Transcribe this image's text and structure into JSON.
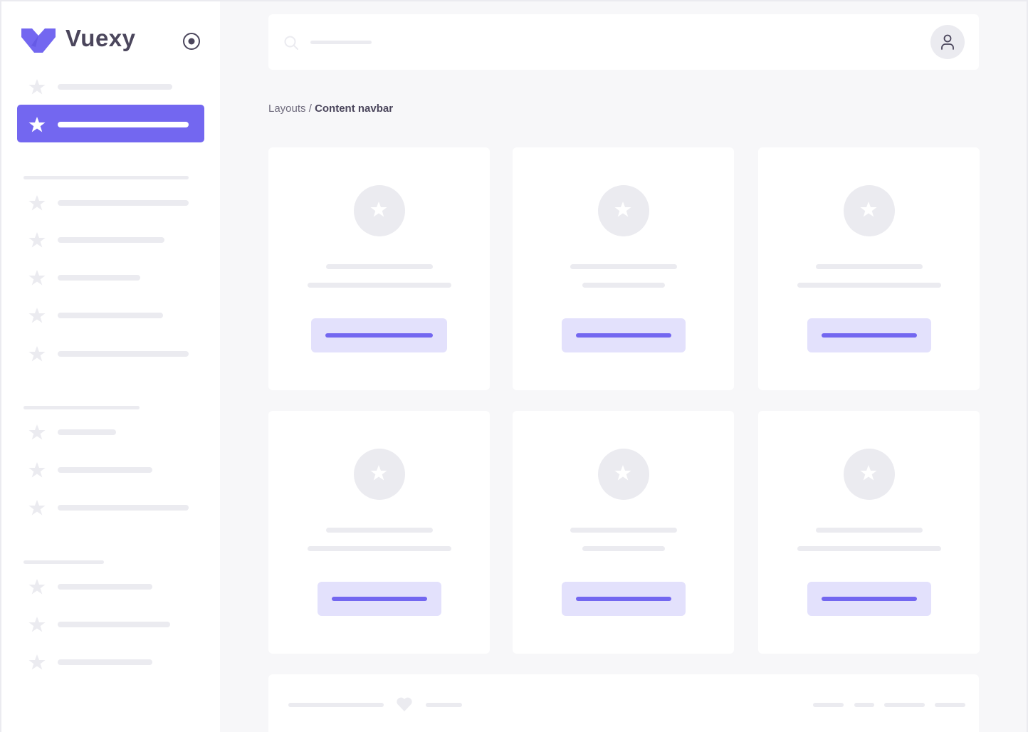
{
  "brand": {
    "name": "Vuexy",
    "logo_icon": "vuexy-logo-icon",
    "toggle_icon": "radio-circle-icon"
  },
  "colors": {
    "primary": "#7367f0",
    "primary_light": "#e3e1fc",
    "skeleton": "#ebebf0",
    "background": "#f7f7f9",
    "text": "#4b465c"
  },
  "sidebar": {
    "item_icon": "star-icon",
    "active_index": 1
  },
  "header": {
    "search_icon": "search-icon",
    "user_icon": "user-icon"
  },
  "breadcrumb": {
    "parent": "Layouts",
    "separator": " / ",
    "current": "Content navbar"
  },
  "cards": {
    "count": 6,
    "icon": "star-icon"
  },
  "footer": {
    "icon": "heart-icon"
  }
}
